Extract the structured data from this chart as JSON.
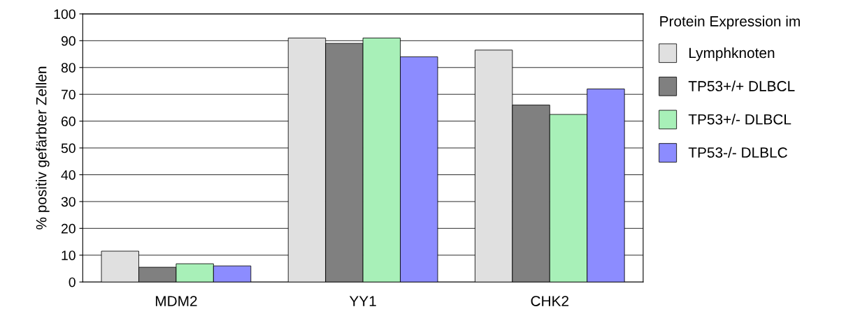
{
  "chart_data": {
    "type": "bar",
    "ylabel": "% positiv gefärbter Zellen",
    "legend_title": "Protein Expression im",
    "categories": [
      "MDM2",
      "YY1",
      "CHK2"
    ],
    "series": [
      {
        "name": "Lymphknoten",
        "color": "#e0e0e0",
        "values": [
          11.5,
          91,
          86.5
        ]
      },
      {
        "name": "TP53+/+ DLBCL",
        "color": "#808080",
        "values": [
          5.5,
          89,
          66
        ]
      },
      {
        "name": "TP53+/- DLBCL",
        "color": "#a8f0b8",
        "values": [
          6.8,
          91,
          62.5
        ]
      },
      {
        "name": "TP53-/- DLBLC",
        "color": "#8c8cff",
        "values": [
          6,
          84,
          72
        ]
      }
    ],
    "ylim": [
      0,
      100
    ],
    "yticks": [
      0,
      10,
      20,
      30,
      40,
      50,
      60,
      70,
      80,
      90,
      100
    ],
    "grid": "y",
    "legend": "right"
  }
}
